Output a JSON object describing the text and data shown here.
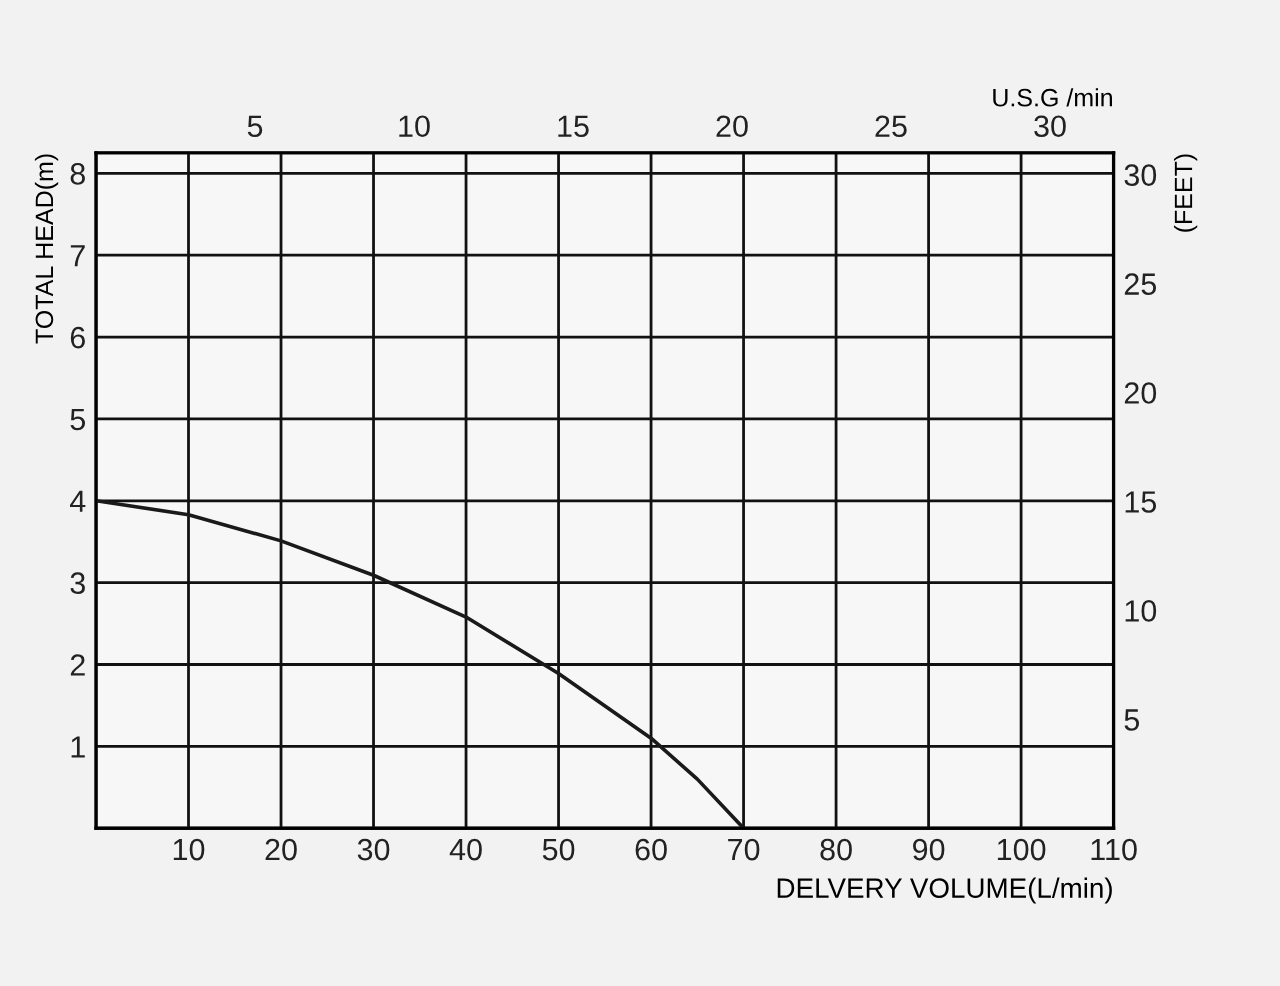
{
  "chart_data": {
    "type": "line",
    "xlabel": "DELVERY VOLUME(L/min)",
    "ylabel": "TOTAL HEAD(m)",
    "y2label": "(FEET)",
    "x2label": "U.S.G /min",
    "series": [
      {
        "color": "#1a1a1a",
        "x": [
          0,
          10,
          20,
          30,
          40,
          50,
          60,
          65,
          70
        ],
        "values": [
          4.0,
          3.83,
          3.51,
          3.09,
          2.58,
          1.89,
          1.1,
          0.6,
          0
        ]
      }
    ],
    "xlim": [
      0,
      110
    ],
    "xticks": [
      {
        "value": 0,
        "label": null
      },
      10,
      20,
      30,
      40,
      50,
      60,
      70,
      80,
      90,
      100,
      110
    ],
    "ylim": [
      0,
      8.25
    ],
    "yticks": [
      {
        "value": 0,
        "label": null
      },
      1,
      2,
      3,
      4,
      5,
      6,
      7,
      8
    ],
    "x2lim": [
      0,
      32
    ],
    "x2ticks": [
      5,
      10,
      15,
      20,
      25,
      30
    ],
    "y2lim": [
      0,
      31
    ],
    "y2ticks": [
      5,
      10,
      15,
      20,
      25,
      30
    ],
    "grid": true,
    "marker": "none",
    "line_style": "solid"
  }
}
